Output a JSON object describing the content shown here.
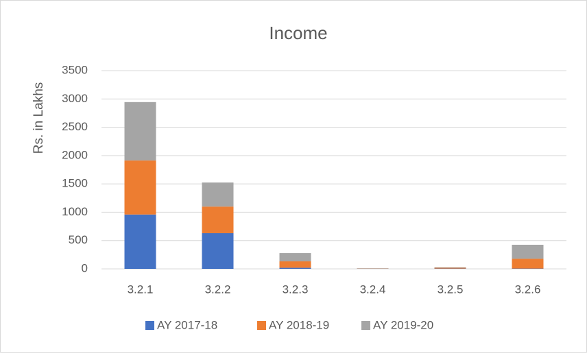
{
  "chart_data": {
    "type": "stacked_bar",
    "title": "Income",
    "y_label": "Rs. in Lakhs",
    "categories": [
      "3.2.1",
      "3.2.2",
      "3.2.3",
      "3.2.4",
      "3.2.5",
      "3.2.6"
    ],
    "series": [
      {
        "name": "AY 2017-18",
        "color": "#4472c4",
        "values": [
          960,
          630,
          20,
          2,
          5,
          5
        ]
      },
      {
        "name": "AY 2018-19",
        "color": "#ed7d31",
        "values": [
          955,
          470,
          113,
          3,
          15,
          175
        ]
      },
      {
        "name": "AY 2019-20",
        "color": "#a5a5a5",
        "values": [
          1030,
          425,
          145,
          5,
          10,
          245
        ]
      }
    ],
    "ylim": [
      0,
      3500
    ],
    "yticks": [
      0,
      500,
      1000,
      1500,
      2000,
      2500,
      3000,
      3500
    ],
    "grid": true
  }
}
